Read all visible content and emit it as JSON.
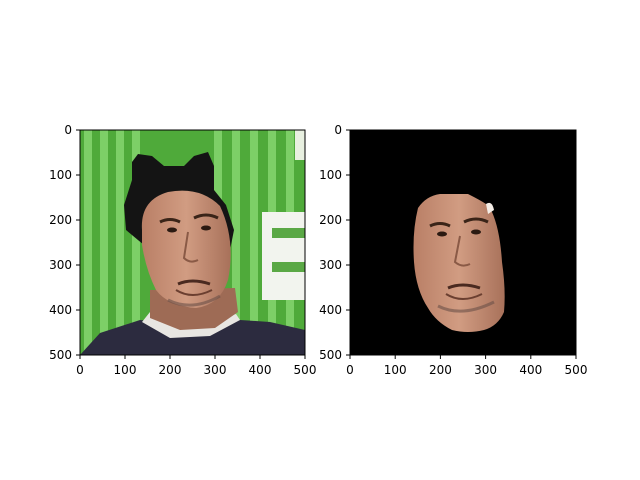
{
  "figure": {
    "panels": [
      {
        "name": "panel-original",
        "image_description": "man with cat-ear overlay on head, green background",
        "xlim": [
          0,
          500
        ],
        "ylim": [
          500,
          0
        ],
        "xticks": [
          0,
          100,
          200,
          300,
          400,
          500
        ],
        "yticks": [
          0,
          100,
          200,
          300,
          400,
          500
        ]
      },
      {
        "name": "panel-face-mask",
        "image_description": "segmented face on black background",
        "xlim": [
          0,
          500
        ],
        "ylim": [
          500,
          0
        ],
        "xticks": [
          0,
          100,
          200,
          300,
          400,
          500
        ],
        "yticks": [
          0,
          100,
          200,
          300,
          400,
          500
        ]
      }
    ]
  },
  "colors": {
    "green_bg": "#4faa3a",
    "green_stripe": "#7fd06a",
    "skin": "#c58f76",
    "hair": "#1a1a1a",
    "mask_bg": "#000000",
    "shirt": "#2c2b3f"
  }
}
